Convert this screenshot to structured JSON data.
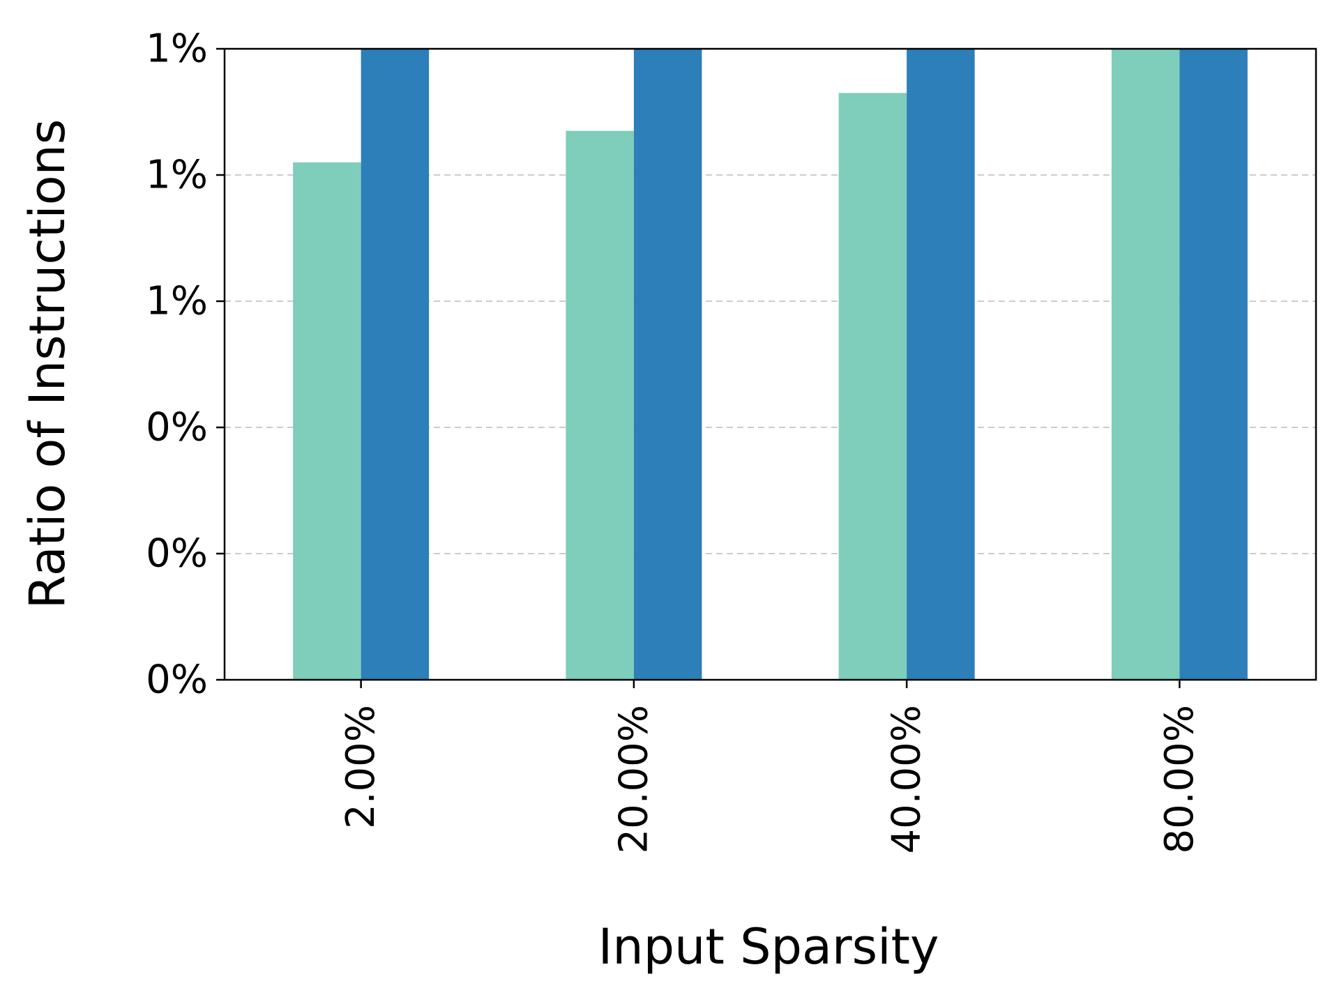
{
  "chart_data": {
    "type": "bar",
    "title": "",
    "xlabel": "Input Sparsity",
    "ylabel": "Ratio of Instructions",
    "categories": [
      "2.00%",
      "20.00%",
      "40.00%",
      "80.00%"
    ],
    "series": [
      {
        "color": "#7fcdbb",
        "values": [
          0.0082,
          0.0087,
          0.0093,
          0.01
        ]
      },
      {
        "color": "#2c7fb8",
        "values": [
          0.01,
          0.01,
          0.01,
          0.01
        ]
      }
    ],
    "ylim": [
      0,
      0.01
    ],
    "y_ticks": [
      0,
      0.002,
      0.004,
      0.006,
      0.008,
      0.01
    ],
    "y_tick_labels": [
      "0%",
      "0%",
      "0%",
      "1%",
      "1%",
      "1%"
    ],
    "grid": "horizontal dashed",
    "legend": "none"
  }
}
